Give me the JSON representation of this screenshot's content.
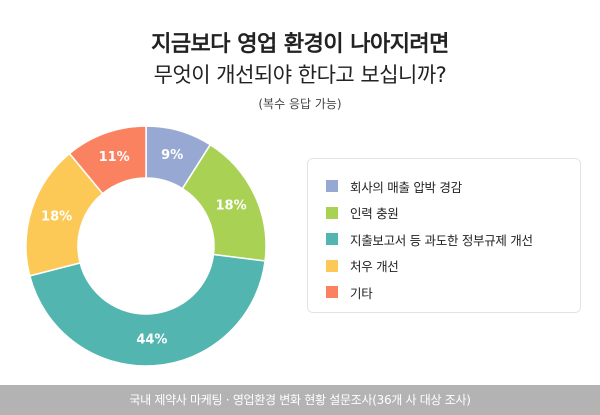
{
  "title": {
    "line1": "지금보다 영업 환경이 나아지려면",
    "line2": "무엇이 개선되야 한다고 보십니까?",
    "subtitle": "(복수 응답 가능)"
  },
  "chart_data": {
    "type": "pie",
    "donut": true,
    "labels": [
      "회사의 매출 압박 경감",
      "인력 충원",
      "지출보고서 등 과도한 정부규제 개선",
      "처우 개선",
      "기타"
    ],
    "values": [
      9,
      18,
      44,
      18,
      11
    ],
    "value_labels": [
      "9%",
      "18%",
      "44%",
      "18%",
      "11%"
    ],
    "colors": [
      "#97a9d3",
      "#a9d154",
      "#52b5af",
      "#fcc956",
      "#fb8261"
    ],
    "legend_position": "right"
  },
  "footer": {
    "text": "국내 제약사 마케팅 · 영업환경 변화 현황 설문조사(36개 사 대상 조사)"
  }
}
